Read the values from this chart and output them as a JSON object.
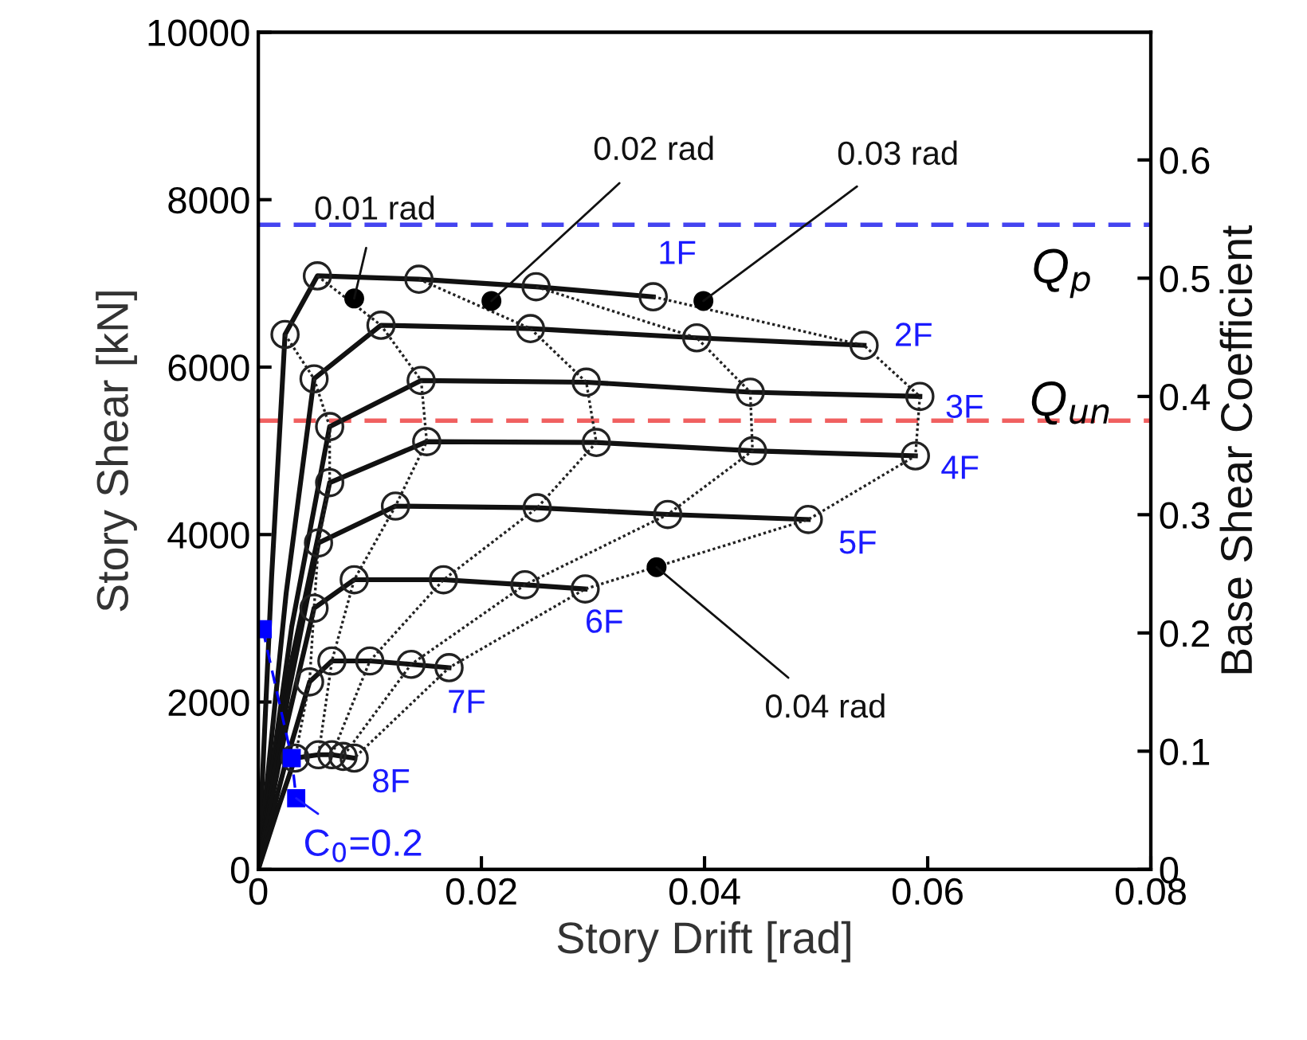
{
  "chart_data": {
    "type": "line",
    "xlabel": "Story Drift [rad]",
    "ylabel": "Story Shear [kN]",
    "y2label": "Base Shear Coefficient",
    "xlim": [
      0,
      0.08
    ],
    "xticks": [
      0,
      0.02,
      0.04,
      0.06,
      0.08
    ],
    "ylim": [
      0,
      10000
    ],
    "yticks": [
      0,
      2000,
      4000,
      6000,
      8000,
      10000
    ],
    "y2lim": [
      0,
      0.708
    ],
    "y2ticks": [
      0,
      0.1,
      0.2,
      0.3,
      0.4,
      0.5,
      0.6
    ],
    "grid": false,
    "series": [
      {
        "name": "1F",
        "color": "#111111",
        "x": [
          0,
          0.0012,
          0.0024,
          0.0053,
          0.0144,
          0.0249,
          0.0354
        ],
        "values": [
          0,
          3500,
          6390,
          7090,
          7050,
          6960,
          6840
        ]
      },
      {
        "name": "2F",
        "color": "#111111",
        "x": [
          0,
          0.0025,
          0.005,
          0.011,
          0.0244,
          0.0393,
          0.0543
        ],
        "values": [
          0,
          3300,
          5860,
          6500,
          6460,
          6350,
          6260
        ]
      },
      {
        "name": "3F",
        "color": "#111111",
        "x": [
          0,
          0.003,
          0.0064,
          0.0146,
          0.0294,
          0.0441,
          0.0593
        ],
        "values": [
          0,
          2900,
          5290,
          5840,
          5820,
          5700,
          5650
        ]
      },
      {
        "name": "4F",
        "color": "#111111",
        "x": [
          0,
          0.003,
          0.0064,
          0.0151,
          0.0303,
          0.0443,
          0.0589
        ],
        "values": [
          0,
          2500,
          4620,
          5110,
          5100,
          5000,
          4940
        ]
      },
      {
        "name": "5F",
        "color": "#111111",
        "x": [
          0,
          0.0027,
          0.0054,
          0.0123,
          0.025,
          0.0367,
          0.0493
        ],
        "values": [
          0,
          2100,
          3900,
          4340,
          4320,
          4240,
          4180
        ]
      },
      {
        "name": "6F",
        "color": "#111111",
        "x": [
          0,
          0.0025,
          0.005,
          0.0086,
          0.0166,
          0.0239,
          0.0293
        ],
        "values": [
          0,
          1700,
          3120,
          3460,
          3460,
          3400,
          3350
        ]
      },
      {
        "name": "7F",
        "color": "#111111",
        "x": [
          0,
          0.0023,
          0.0046,
          0.0066,
          0.01,
          0.0137,
          0.0171
        ],
        "values": [
          0,
          1200,
          2240,
          2490,
          2490,
          2450,
          2410
        ]
      },
      {
        "name": "8F",
        "color": "#111111",
        "x": [
          0,
          0.0017,
          0.0033,
          0.0054,
          0.0066,
          0.0076,
          0.0086
        ],
        "values": [
          0,
          700,
          1330,
          1370,
          1370,
          1350,
          1330
        ]
      },
      {
        "color": "#222222",
        "line_style": "dotted",
        "marker": "circle",
        "x": [
          0.0024,
          0.005,
          0.0064,
          0.0064,
          0.0054,
          0.005,
          0.0046,
          0.0033
        ],
        "values": [
          6390,
          5860,
          5290,
          4620,
          3900,
          3120,
          2240,
          1330
        ]
      },
      {
        "color": "#222222",
        "line_style": "dotted",
        "marker": "circle",
        "x": [
          0.0053,
          0.011,
          0.0146,
          0.0151,
          0.0123,
          0.0086,
          0.0066,
          0.0054
        ],
        "values": [
          7090,
          6500,
          5840,
          5110,
          4340,
          3460,
          2490,
          1370
        ]
      },
      {
        "color": "#222222",
        "line_style": "dotted",
        "marker": "circle",
        "x": [
          0.0144,
          0.0244,
          0.0294,
          0.0303,
          0.025,
          0.0166,
          0.01,
          0.0066
        ],
        "values": [
          7050,
          6460,
          5820,
          5100,
          4320,
          3460,
          2490,
          1370
        ]
      },
      {
        "color": "#222222",
        "line_style": "dotted",
        "marker": "circle",
        "x": [
          0.0249,
          0.0393,
          0.0441,
          0.0443,
          0.0367,
          0.0239,
          0.0137,
          0.0076
        ],
        "values": [
          6960,
          6350,
          5700,
          5000,
          4240,
          3400,
          2450,
          1350
        ]
      },
      {
        "color": "#222222",
        "line_style": "dotted",
        "marker": "circle",
        "x": [
          0.0354,
          0.0543,
          0.0593,
          0.0589,
          0.0493,
          0.0293,
          0.0171,
          0.0086
        ],
        "values": [
          6840,
          6260,
          5650,
          4940,
          4180,
          3350,
          2410,
          1330
        ]
      },
      {
        "color": "#0000ff",
        "line_style": "dashed",
        "marker": "square",
        "x": [
          0.0004,
          0.003,
          0.0034
        ],
        "values": [
          2870,
          1330,
          850
        ]
      }
    ],
    "ref_lines": [
      {
        "axis": "y",
        "value": 7700,
        "label": "Q$_{p}$",
        "color": "#4444f0",
        "line_style": "dashed"
      },
      {
        "axis": "y",
        "value": 5360,
        "label": "Q$_{un}$",
        "color": "#f06060",
        "line_style": "dashed"
      }
    ],
    "annotations": [
      {
        "text": "0.01 rad",
        "x": 0.0086,
        "y": 6820
      },
      {
        "text": "0.02 rad",
        "x": 0.0209,
        "y": 6790
      },
      {
        "text": "0.03 rad",
        "x": 0.0399,
        "y": 6790
      },
      {
        "text": "0.04 rad",
        "x": 0.0357,
        "y": 3610
      },
      {
        "text": "C$_{0}$=0.2",
        "x": 0.0034,
        "y": 850
      }
    ]
  }
}
